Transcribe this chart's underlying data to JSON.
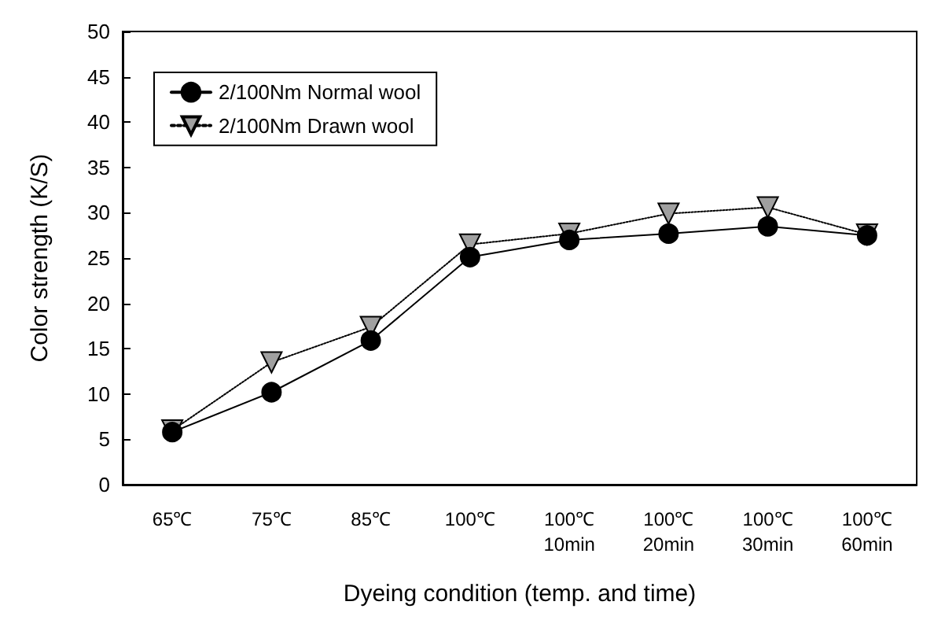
{
  "chart_data": {
    "type": "line",
    "xlabel": "Dyeing condition (temp. and time)",
    "ylabel": "Color strength (K/S)",
    "categories": [
      "65℃",
      "75℃",
      "85℃",
      "100℃",
      "100℃\n10min",
      "100℃\n20min",
      "100℃\n30min",
      "100℃\n60min"
    ],
    "series": [
      {
        "name": "2/100Nm Normal wool",
        "color": "#000000",
        "marker": "circle",
        "line_style": "solid",
        "values": [
          5.8,
          10.2,
          15.9,
          25.1,
          27.0,
          27.7,
          28.5,
          27.5
        ]
      },
      {
        "name": "2/100Nm Drawn wool",
        "color": "#a0a0a0",
        "marker": "triangle",
        "line_style": "dotted",
        "values": [
          6.0,
          13.5,
          17.4,
          26.5,
          27.7,
          29.9,
          30.6,
          27.6
        ]
      }
    ],
    "ylim": [
      0,
      50
    ],
    "yticks": [
      0,
      5,
      10,
      15,
      20,
      25,
      30,
      35,
      40,
      45,
      50
    ],
    "grid": false,
    "legend": "top left"
  }
}
